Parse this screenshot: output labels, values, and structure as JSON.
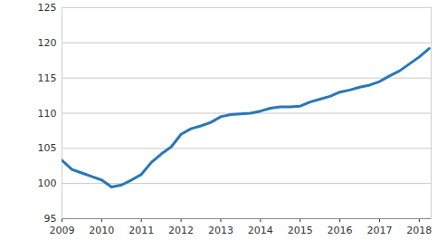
{
  "chart_data": {
    "type": "line",
    "x": [
      2009.0,
      2009.25,
      2009.5,
      2009.75,
      2010.0,
      2010.25,
      2010.5,
      2010.75,
      2011.0,
      2011.25,
      2011.5,
      2011.75,
      2012.0,
      2012.25,
      2012.5,
      2012.75,
      2013.0,
      2013.25,
      2013.5,
      2013.75,
      2014.0,
      2014.25,
      2014.5,
      2014.75,
      2015.0,
      2015.25,
      2015.5,
      2015.75,
      2016.0,
      2016.25,
      2016.5,
      2016.75,
      2017.0,
      2017.25,
      2017.5,
      2017.75,
      2018.0,
      2018.25
    ],
    "values": [
      103.3,
      102.0,
      101.5,
      101.0,
      100.5,
      99.5,
      99.8,
      100.5,
      101.3,
      103.0,
      104.2,
      105.2,
      107.0,
      107.8,
      108.2,
      108.7,
      109.5,
      109.8,
      109.9,
      110.0,
      110.3,
      110.7,
      110.9,
      110.9,
      111.0,
      111.6,
      112.0,
      112.4,
      113.0,
      113.3,
      113.7,
      114.0,
      114.5,
      115.3,
      116.0,
      117.0,
      118.0,
      119.2
    ],
    "color": "#2878b8",
    "xlim": [
      2009,
      2018.3
    ],
    "xticks": [
      2009,
      2010,
      2011,
      2012,
      2013,
      2014,
      2015,
      2016,
      2017,
      2018
    ],
    "ylim": [
      95,
      125
    ],
    "yticks": [
      95,
      100,
      105,
      110,
      115,
      120,
      125
    ],
    "grid": true
  }
}
